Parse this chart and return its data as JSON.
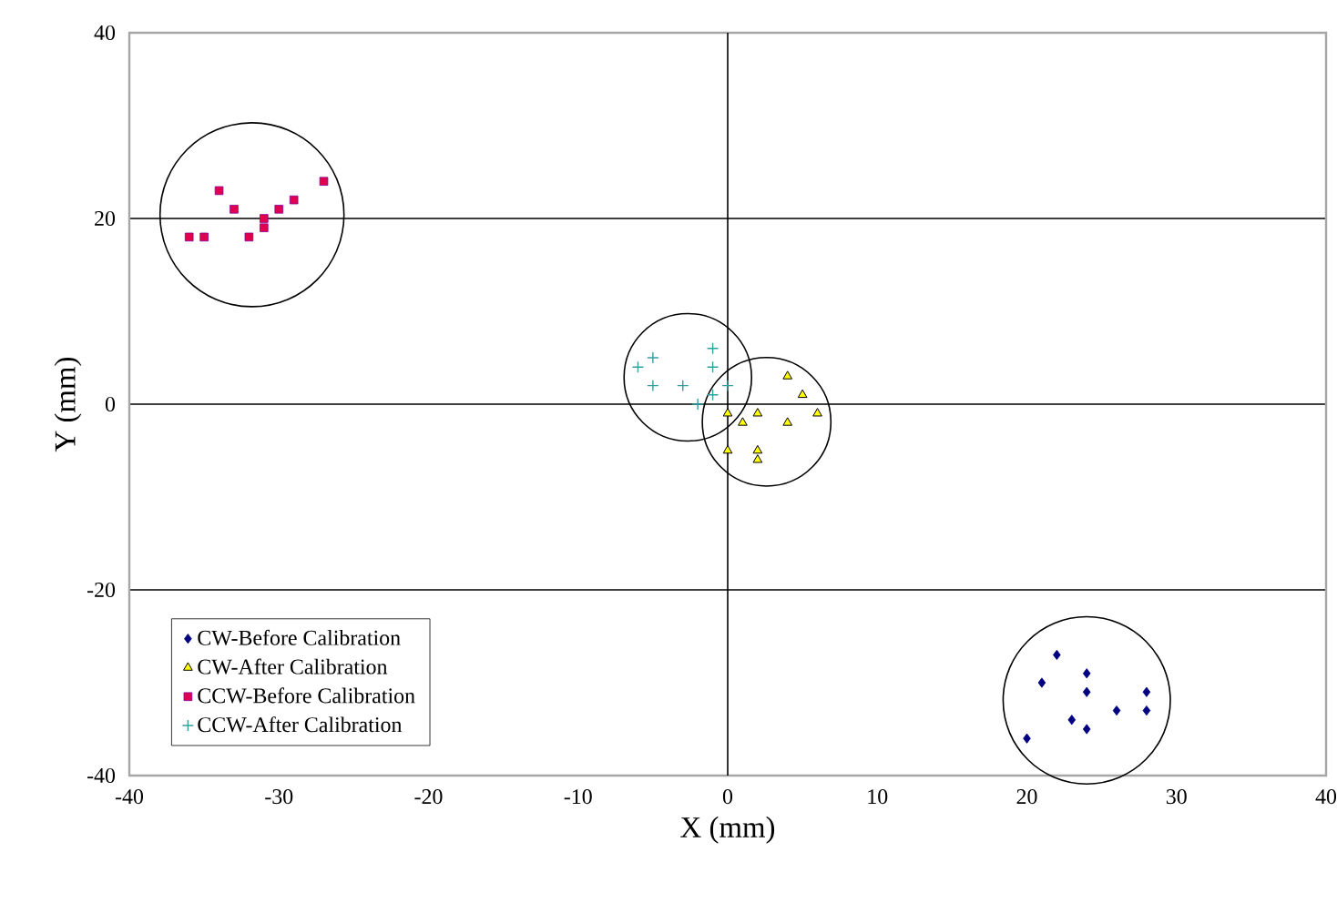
{
  "chart_data": {
    "type": "scatter",
    "xlabel": "X (mm)",
    "ylabel": "Y (mm)",
    "xlim": [
      -40,
      40
    ],
    "ylim": [
      -40,
      40
    ],
    "xticks": [
      -40,
      -30,
      -20,
      -10,
      0,
      10,
      20,
      30,
      40
    ],
    "yticks": [
      -40,
      -20,
      0,
      20,
      40
    ],
    "grid": "y",
    "legend": "bottom left",
    "ref_lines": [
      {
        "axis": "x",
        "value": 0,
        "color": "#000000"
      }
    ],
    "series": [
      {
        "name": "CW-Before Calibration",
        "color": "#000080",
        "marker": "diamond",
        "x": [
          22,
          21,
          24,
          24,
          28,
          28,
          26,
          23,
          24,
          20
        ],
        "values": [
          -27,
          -30,
          -29,
          -31,
          -31,
          -33,
          -33,
          -34,
          -35,
          -36
        ]
      },
      {
        "name": "CW-After Calibration",
        "color": "#ffff00",
        "marker": "triangle",
        "x": [
          0,
          1,
          2,
          4,
          5,
          6,
          4,
          0,
          2,
          2
        ],
        "values": [
          -1,
          -2,
          -1,
          3,
          1,
          -1,
          -2,
          -5,
          -5,
          -6
        ]
      },
      {
        "name": "CCW-Before Calibration",
        "color": "#e0004f",
        "marker": "square",
        "x": [
          -36,
          -35,
          -34,
          -33,
          -32,
          -31,
          -31,
          -30,
          -29,
          -27
        ],
        "values": [
          18,
          18,
          23,
          21,
          18,
          20,
          19,
          21,
          22,
          24
        ]
      },
      {
        "name": "CCW-After Calibration",
        "color": "#33a0a0",
        "marker": "cross",
        "x": [
          -6,
          -5,
          -5,
          -3,
          -2,
          -1,
          -1,
          -1,
          0
        ],
        "values": [
          4,
          5,
          2,
          2,
          0,
          1,
          6,
          4,
          2
        ]
      }
    ]
  }
}
